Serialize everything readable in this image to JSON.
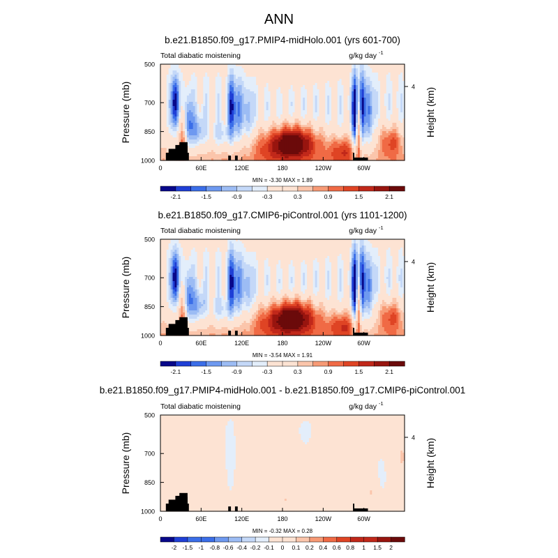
{
  "chart_data": {
    "type": "heatmap",
    "figure_title": "ANN",
    "panels": [
      {
        "title": "b.e21.B1850.f09_g17.PMIP4-midHolo.001 (yrs 601-700)",
        "left_label": "Total diabatic moistening",
        "units_base": "g/kg day",
        "units_exp": "-1",
        "ylabel": "Pressure (mb)",
        "ylabel_right": "Height (km)",
        "y_ticks": [
          "500",
          "700",
          "850",
          "1000"
        ],
        "y_tick_values": [
          500,
          700,
          850,
          1000
        ],
        "y_right_tick": "4",
        "x_ticks": [
          "0",
          "60E",
          "120E",
          "180",
          "120W",
          "60W"
        ],
        "x_tick_values": [
          0,
          60,
          120,
          180,
          240,
          300
        ],
        "xlim": [
          0,
          360
        ],
        "ylim": [
          500,
          1000
        ],
        "min_max": "MIN =  -3.30  MAX =  1.89",
        "colorbar_labels": [
          "-2.1",
          "-1.5",
          "-0.9",
          "-0.3",
          "0.3",
          "0.9",
          "1.5",
          "2.1"
        ],
        "colorbar_levels": [
          -2.1,
          -1.8,
          -1.5,
          -1.2,
          -0.9,
          -0.6,
          -0.3,
          0,
          0.3,
          0.6,
          0.9,
          1.2,
          1.5,
          1.8,
          2.1
        ],
        "field_scale": 1.0
      },
      {
        "title": "b.e21.B1850.f09_g17.CMIP6-piControl.001 (yrs 1101-1200)",
        "left_label": "Total diabatic moistening",
        "units_base": "g/kg day",
        "units_exp": "-1",
        "ylabel": "Pressure (mb)",
        "ylabel_right": "Height (km)",
        "y_ticks": [
          "500",
          "700",
          "850",
          "1000"
        ],
        "y_tick_values": [
          500,
          700,
          850,
          1000
        ],
        "y_right_tick": "4",
        "x_ticks": [
          "0",
          "60E",
          "120E",
          "180",
          "120W",
          "60W"
        ],
        "x_tick_values": [
          0,
          60,
          120,
          180,
          240,
          300
        ],
        "xlim": [
          0,
          360
        ],
        "ylim": [
          500,
          1000
        ],
        "min_max": "MIN =  -3.54  MAX =  1.91",
        "colorbar_labels": [
          "-2.1",
          "-1.5",
          "-0.9",
          "-0.3",
          "0.3",
          "0.9",
          "1.5",
          "2.1"
        ],
        "colorbar_levels": [
          -2.1,
          -1.8,
          -1.5,
          -1.2,
          -0.9,
          -0.6,
          -0.3,
          0,
          0.3,
          0.6,
          0.9,
          1.2,
          1.5,
          1.8,
          2.1
        ],
        "field_scale": 1.01
      },
      {
        "title": "b.e21.B1850.f09_g17.PMIP4-midHolo.001 - b.e21.B1850.f09_g17.CMIP6-piControl.001",
        "left_label": "Total diabatic moistening",
        "units_base": "g/kg day",
        "units_exp": "-1",
        "ylabel": "Pressure (mb)",
        "ylabel_right": "Height (km)",
        "y_ticks": [
          "500",
          "700",
          "850",
          "1000"
        ],
        "y_tick_values": [
          500,
          700,
          850,
          1000
        ],
        "y_right_tick": "4",
        "x_ticks": [
          "0",
          "60E",
          "120E",
          "180",
          "120W",
          "60W"
        ],
        "x_tick_values": [
          0,
          60,
          120,
          180,
          240,
          300
        ],
        "xlim": [
          0,
          360
        ],
        "ylim": [
          500,
          1000
        ],
        "min_max": "MIN =  -0.32  MAX =  0.28",
        "colorbar_labels": [
          "-2",
          "-1.5",
          "-1",
          "-0.8",
          "-0.6",
          "-0.4",
          "-0.2",
          "-0.1",
          "0",
          "0.1",
          "0.2",
          "0.4",
          "0.6",
          "0.8",
          "1",
          "1.5",
          "2"
        ],
        "colorbar_levels": [
          -2,
          -1.5,
          -1,
          -0.8,
          -0.6,
          -0.4,
          -0.2,
          -0.1,
          0,
          0.1,
          0.2,
          0.4,
          0.6,
          0.8,
          1,
          1.5,
          2
        ],
        "field_scale": 0.12
      }
    ],
    "colormap": [
      "#08088a",
      "#1f3fd6",
      "#3b6ee8",
      "#6e99f0",
      "#9cbcf4",
      "#c4d8f8",
      "#e3eefb",
      "#fde3d3",
      "#fbc5ab",
      "#f79a75",
      "#f06a45",
      "#df4424",
      "#c1281a",
      "#98150f",
      "#6b0a0a"
    ]
  }
}
